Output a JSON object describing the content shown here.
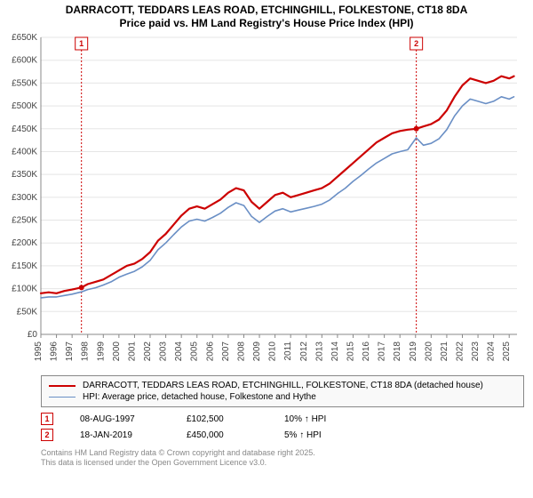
{
  "title": {
    "line1": "DARRACOTT, TEDDARS LEAS ROAD, ETCHINGHILL, FOLKESTONE, CT18 8DA",
    "line2": "Price paid vs. HM Land Registry's House Price Index (HPI)"
  },
  "chart": {
    "type": "line",
    "background_color": "#ffffff",
    "grid_color": "#e5e5e5",
    "axis_color": "#888888",
    "y": {
      "min": 0,
      "max": 650000,
      "tick_step": 50000,
      "tick_labels": [
        "£0",
        "£50K",
        "£100K",
        "£150K",
        "£200K",
        "£250K",
        "£300K",
        "£350K",
        "£400K",
        "£450K",
        "£500K",
        "£550K",
        "£600K",
        "£650K"
      ],
      "label_fontsize": 10,
      "label_color": "#444444"
    },
    "x": {
      "min": 1995,
      "max": 2025.5,
      "ticks": [
        1995,
        1996,
        1997,
        1998,
        1999,
        2000,
        2001,
        2002,
        2003,
        2004,
        2005,
        2006,
        2007,
        2008,
        2009,
        2010,
        2011,
        2012,
        2013,
        2014,
        2015,
        2016,
        2017,
        2018,
        2019,
        2020,
        2021,
        2022,
        2023,
        2024,
        2025
      ],
      "label_fontsize": 10,
      "label_color": "#444444",
      "rotate": -90
    },
    "series": [
      {
        "id": "price_paid",
        "label": "DARRACOTT, TEDDARS LEAS ROAD, ETCHINGHILL, FOLKESTONE, CT18 8DA (detached house)",
        "color": "#cc0000",
        "line_width": 2.2,
        "data": [
          [
            1995.0,
            90000
          ],
          [
            1995.5,
            92000
          ],
          [
            1996.0,
            90000
          ],
          [
            1996.5,
            95000
          ],
          [
            1997.0,
            98000
          ],
          [
            1997.6,
            102500
          ],
          [
            1998.0,
            110000
          ],
          [
            1998.5,
            115000
          ],
          [
            1999.0,
            120000
          ],
          [
            1999.5,
            130000
          ],
          [
            2000.0,
            140000
          ],
          [
            2000.5,
            150000
          ],
          [
            2001.0,
            155000
          ],
          [
            2001.5,
            165000
          ],
          [
            2002.0,
            180000
          ],
          [
            2002.5,
            205000
          ],
          [
            2003.0,
            220000
          ],
          [
            2003.5,
            240000
          ],
          [
            2004.0,
            260000
          ],
          [
            2004.5,
            275000
          ],
          [
            2005.0,
            280000
          ],
          [
            2005.5,
            275000
          ],
          [
            2006.0,
            285000
          ],
          [
            2006.5,
            295000
          ],
          [
            2007.0,
            310000
          ],
          [
            2007.5,
            320000
          ],
          [
            2008.0,
            315000
          ],
          [
            2008.5,
            290000
          ],
          [
            2009.0,
            275000
          ],
          [
            2009.5,
            290000
          ],
          [
            2010.0,
            305000
          ],
          [
            2010.5,
            310000
          ],
          [
            2011.0,
            300000
          ],
          [
            2011.5,
            305000
          ],
          [
            2012.0,
            310000
          ],
          [
            2012.5,
            315000
          ],
          [
            2013.0,
            320000
          ],
          [
            2013.5,
            330000
          ],
          [
            2014.0,
            345000
          ],
          [
            2014.5,
            360000
          ],
          [
            2015.0,
            375000
          ],
          [
            2015.5,
            390000
          ],
          [
            2016.0,
            405000
          ],
          [
            2016.5,
            420000
          ],
          [
            2017.0,
            430000
          ],
          [
            2017.5,
            440000
          ],
          [
            2018.0,
            445000
          ],
          [
            2018.5,
            448000
          ],
          [
            2019.05,
            450000
          ],
          [
            2019.5,
            455000
          ],
          [
            2020.0,
            460000
          ],
          [
            2020.5,
            470000
          ],
          [
            2021.0,
            490000
          ],
          [
            2021.5,
            520000
          ],
          [
            2022.0,
            545000
          ],
          [
            2022.5,
            560000
          ],
          [
            2023.0,
            555000
          ],
          [
            2023.5,
            550000
          ],
          [
            2024.0,
            555000
          ],
          [
            2024.5,
            565000
          ],
          [
            2025.0,
            560000
          ],
          [
            2025.3,
            565000
          ]
        ]
      },
      {
        "id": "hpi",
        "label": "HPI: Average price, detached house, Folkestone and Hythe",
        "color": "#6a8fc5",
        "line_width": 1.6,
        "data": [
          [
            1995.0,
            80000
          ],
          [
            1995.5,
            82000
          ],
          [
            1996.0,
            82000
          ],
          [
            1996.5,
            85000
          ],
          [
            1997.0,
            88000
          ],
          [
            1997.6,
            93000
          ],
          [
            1998.0,
            98000
          ],
          [
            1998.5,
            102000
          ],
          [
            1999.0,
            108000
          ],
          [
            1999.5,
            115000
          ],
          [
            2000.0,
            125000
          ],
          [
            2000.5,
            132000
          ],
          [
            2001.0,
            138000
          ],
          [
            2001.5,
            148000
          ],
          [
            2002.0,
            162000
          ],
          [
            2002.5,
            185000
          ],
          [
            2003.0,
            200000
          ],
          [
            2003.5,
            218000
          ],
          [
            2004.0,
            235000
          ],
          [
            2004.5,
            248000
          ],
          [
            2005.0,
            252000
          ],
          [
            2005.5,
            248000
          ],
          [
            2006.0,
            256000
          ],
          [
            2006.5,
            265000
          ],
          [
            2007.0,
            278000
          ],
          [
            2007.5,
            288000
          ],
          [
            2008.0,
            282000
          ],
          [
            2008.5,
            258000
          ],
          [
            2009.0,
            245000
          ],
          [
            2009.5,
            258000
          ],
          [
            2010.0,
            270000
          ],
          [
            2010.5,
            275000
          ],
          [
            2011.0,
            268000
          ],
          [
            2011.5,
            272000
          ],
          [
            2012.0,
            276000
          ],
          [
            2012.5,
            280000
          ],
          [
            2013.0,
            285000
          ],
          [
            2013.5,
            294000
          ],
          [
            2014.0,
            308000
          ],
          [
            2014.5,
            320000
          ],
          [
            2015.0,
            335000
          ],
          [
            2015.5,
            348000
          ],
          [
            2016.0,
            362000
          ],
          [
            2016.5,
            375000
          ],
          [
            2017.0,
            385000
          ],
          [
            2017.5,
            395000
          ],
          [
            2018.0,
            400000
          ],
          [
            2018.5,
            404000
          ],
          [
            2019.05,
            430000
          ],
          [
            2019.5,
            414000
          ],
          [
            2020.0,
            418000
          ],
          [
            2020.5,
            428000
          ],
          [
            2021.0,
            448000
          ],
          [
            2021.5,
            478000
          ],
          [
            2022.0,
            500000
          ],
          [
            2022.5,
            515000
          ],
          [
            2023.0,
            510000
          ],
          [
            2023.5,
            505000
          ],
          [
            2024.0,
            510000
          ],
          [
            2024.5,
            520000
          ],
          [
            2025.0,
            515000
          ],
          [
            2025.3,
            520000
          ]
        ]
      }
    ],
    "sale_markers": [
      {
        "n": "1",
        "x": 1997.6,
        "y": 102500,
        "color": "#cc0000"
      },
      {
        "n": "2",
        "x": 2019.05,
        "y": 450000,
        "color": "#cc0000"
      }
    ]
  },
  "legend": {
    "border_color": "#888888",
    "background": "#f9f9f9",
    "items": [
      {
        "color": "#cc0000",
        "width": 2.2,
        "label": "DARRACOTT, TEDDARS LEAS ROAD, ETCHINGHILL, FOLKESTONE, CT18 8DA (detached house)"
      },
      {
        "color": "#6a8fc5",
        "width": 1.6,
        "label": "HPI: Average price, detached house, Folkestone and Hythe"
      }
    ]
  },
  "marker_table": {
    "rows": [
      {
        "n": "1",
        "color": "#cc0000",
        "date": "08-AUG-1997",
        "price": "£102,500",
        "delta": "10% ↑ HPI"
      },
      {
        "n": "2",
        "color": "#cc0000",
        "date": "18-JAN-2019",
        "price": "£450,000",
        "delta": "5% ↑ HPI"
      }
    ]
  },
  "footer": {
    "line1": "Contains HM Land Registry data © Crown copyright and database right 2025.",
    "line2": "This data is licensed under the Open Government Licence v3.0."
  }
}
